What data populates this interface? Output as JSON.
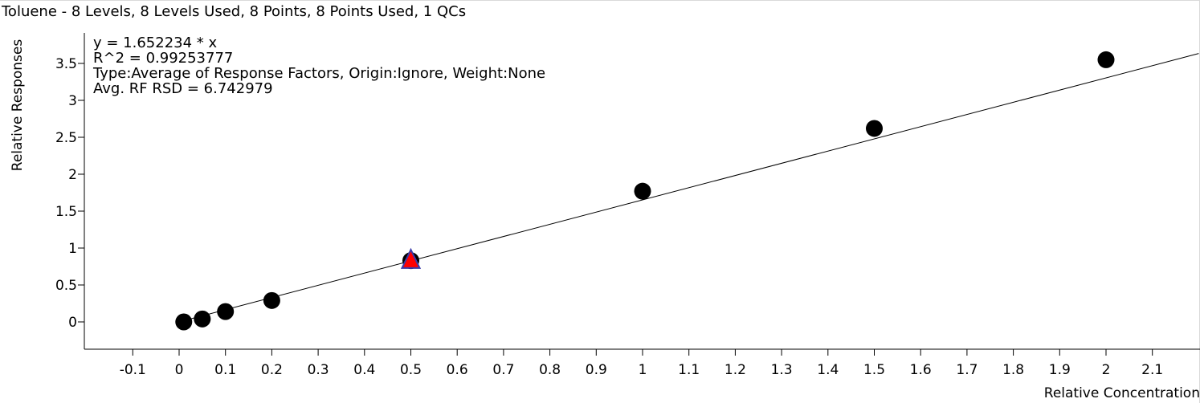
{
  "chart_data": {
    "type": "scatter",
    "title": "Toluene - 8 Levels, 8 Levels Used, 8 Points, 8 Points Used, 1 QCs",
    "xlabel": "Relative Concentration",
    "ylabel": "Relative Responses",
    "xlim": [
      -0.2,
      2.2
    ],
    "ylim": [
      -0.35,
      3.8
    ],
    "x_ticks": [
      -0.1,
      0,
      0.1,
      0.2,
      0.3,
      0.4,
      0.5,
      0.6,
      0.7,
      0.8,
      0.9,
      1,
      1.1,
      1.2,
      1.3,
      1.4,
      1.5,
      1.6,
      1.7,
      1.8,
      1.9,
      2,
      2.1
    ],
    "y_ticks": [
      0,
      0.5,
      1,
      1.5,
      2,
      2.5,
      3,
      3.5
    ],
    "grid": false,
    "annotations": [
      "y = 1.652234 * x",
      "R^2 = 0.99253777",
      "Type:Average of Response Factors, Origin:Ignore, Weight:None",
      "Avg. RF RSD = 6.742979"
    ],
    "fit_line": {
      "slope": 1.652234,
      "intercept": 0
    },
    "series": [
      {
        "x": [
          0.01,
          0.05,
          0.1,
          0.2,
          0.5,
          1.0,
          1.5,
          2.0
        ],
        "y": [
          0.0,
          0.04,
          0.14,
          0.29,
          0.83,
          1.77,
          2.62,
          3.55
        ],
        "marker": "circle",
        "color": "#000000"
      },
      {
        "x": [
          0.5
        ],
        "y": [
          0.83
        ],
        "marker": "triangle",
        "color": "#ff0000",
        "edge_color": "#3a3aa8"
      }
    ]
  }
}
